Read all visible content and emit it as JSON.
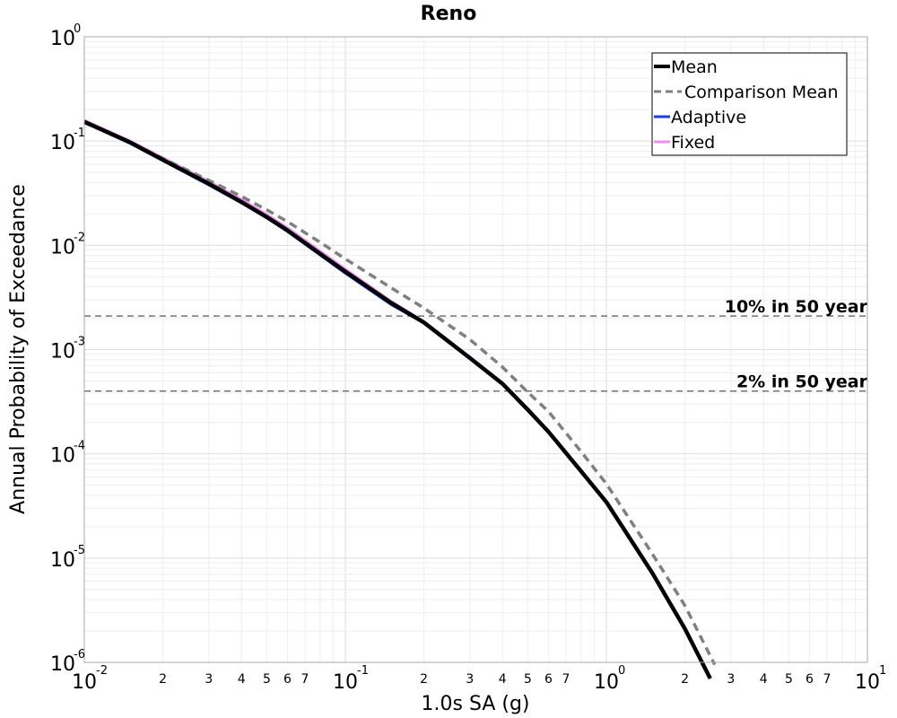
{
  "chart_data": {
    "type": "line",
    "title": "Reno",
    "xlabel": "1.0s SA (g)",
    "ylabel": "Annual Probability of Exceedance",
    "x_scale": "log",
    "y_scale": "log",
    "xlim": [
      0.01,
      10
    ],
    "ylim": [
      1e-06,
      1
    ],
    "grid": true,
    "legend_position": "top-right",
    "x_major_ticks": [
      {
        "value": 0.01,
        "base": "10",
        "exp": "-2"
      },
      {
        "value": 0.1,
        "base": "10",
        "exp": "-1"
      },
      {
        "value": 1,
        "base": "10",
        "exp": "0"
      },
      {
        "value": 10,
        "base": "10",
        "exp": "1"
      }
    ],
    "x_minor_labels": [
      "2",
      "3",
      "4",
      "5",
      "6",
      "7"
    ],
    "y_major_ticks": [
      {
        "value": 1,
        "base": "10",
        "exp": "0"
      },
      {
        "value": 0.1,
        "base": "10",
        "exp": "-1"
      },
      {
        "value": 0.01,
        "base": "10",
        "exp": "-2"
      },
      {
        "value": 0.001,
        "base": "10",
        "exp": "-3"
      },
      {
        "value": 0.0001,
        "base": "10",
        "exp": "-4"
      },
      {
        "value": 1e-05,
        "base": "10",
        "exp": "-5"
      },
      {
        "value": 1e-06,
        "base": "10",
        "exp": "-6"
      }
    ],
    "reference_lines": [
      {
        "label": "10% in 50 year",
        "y": 0.0021
      },
      {
        "label": "2% in 50 year",
        "y": 0.0004
      }
    ],
    "series": [
      {
        "name": "Fixed",
        "color": "#f08cf0",
        "style": "solid",
        "x": [
          0.01,
          0.015,
          0.02,
          0.03,
          0.04,
          0.05,
          0.06,
          0.08,
          0.1,
          0.15,
          0.2,
          0.3,
          0.4,
          0.5,
          0.6,
          0.8,
          1.0,
          1.5,
          2.0,
          2.5
        ],
        "y": [
          0.158,
          0.1,
          0.069,
          0.041,
          0.0275,
          0.0197,
          0.0147,
          0.0088,
          0.0059,
          0.0029,
          0.00185,
          0.00085,
          0.00048,
          0.00027,
          0.000165,
          6.85e-05,
          3.45e-05,
          7.2e-06,
          2.1e-06,
          7e-07
        ]
      },
      {
        "name": "Adaptive",
        "color": "#1a3cf0",
        "style": "solid",
        "x": [
          0.01,
          0.015,
          0.02,
          0.03,
          0.04,
          0.05,
          0.06,
          0.08,
          0.1,
          0.15,
          0.2,
          0.3,
          0.4,
          0.5,
          0.6,
          0.8,
          1.0,
          1.5,
          2.0,
          2.5
        ],
        "y": [
          0.152,
          0.095,
          0.065,
          0.038,
          0.0255,
          0.0183,
          0.0136,
          0.0081,
          0.0054,
          0.0027,
          0.0018,
          0.00082,
          0.00047,
          0.000265,
          0.000163,
          6.8e-05,
          3.45e-05,
          7.2e-06,
          2.1e-06,
          7e-07
        ]
      },
      {
        "name": "Comparison Mean",
        "color": "#808080",
        "style": "dashed",
        "x": [
          0.01,
          0.015,
          0.02,
          0.03,
          0.04,
          0.05,
          0.06,
          0.08,
          0.1,
          0.15,
          0.2,
          0.3,
          0.4,
          0.5,
          0.6,
          0.8,
          1.0,
          1.5,
          2.0,
          2.6
        ],
        "y": [
          0.15,
          0.098,
          0.068,
          0.042,
          0.0295,
          0.0219,
          0.0169,
          0.0107,
          0.0074,
          0.0039,
          0.0025,
          0.00125,
          0.00068,
          0.00039,
          0.000255,
          0.000105,
          5.15e-05,
          1.1e-05,
          3.5e-06,
          9.5e-07
        ]
      },
      {
        "name": "Mean",
        "color": "#000000",
        "style": "solid",
        "x": [
          0.01,
          0.015,
          0.02,
          0.03,
          0.04,
          0.05,
          0.06,
          0.08,
          0.1,
          0.15,
          0.2,
          0.3,
          0.4,
          0.5,
          0.6,
          0.8,
          1.0,
          1.5,
          2.0,
          2.5
        ],
        "y": [
          0.153,
          0.097,
          0.066,
          0.039,
          0.026,
          0.0187,
          0.0139,
          0.0083,
          0.0056,
          0.0028,
          0.00182,
          0.00083,
          0.00047,
          0.000265,
          0.000163,
          6.8e-05,
          3.45e-05,
          7.2e-06,
          2.1e-06,
          7e-07
        ]
      }
    ],
    "legend_order": [
      "Mean",
      "Comparison Mean",
      "Adaptive",
      "Fixed"
    ]
  }
}
